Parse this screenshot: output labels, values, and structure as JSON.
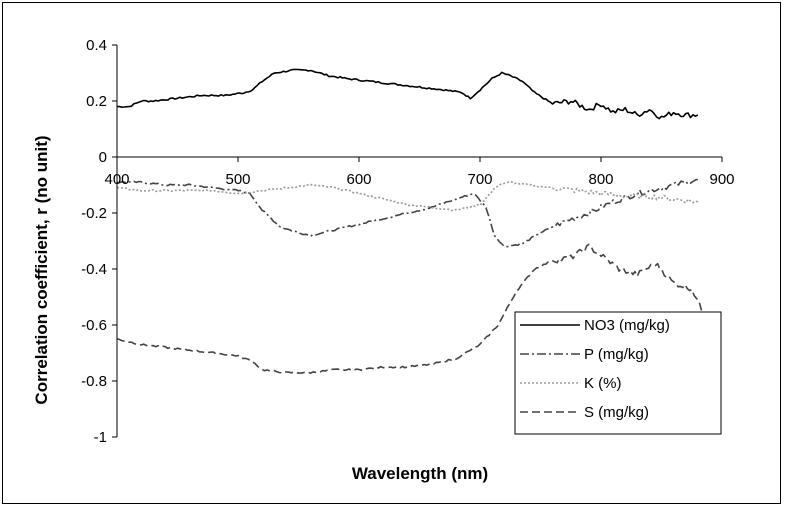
{
  "chart_data": {
    "type": "line",
    "title": "",
    "xlabel": "Wavelength (nm)",
    "ylabel": "Correlation coefficient, r (no unit)",
    "xlim": [
      400,
      900
    ],
    "ylim": [
      -1,
      0.4
    ],
    "xticks": [
      "400",
      "500",
      "600",
      "700",
      "800",
      "900"
    ],
    "yticks": [
      "0.4",
      "0.2",
      "0",
      "-0.2",
      "-0.4",
      "-0.6",
      "-0.8",
      "-1"
    ],
    "grid": false,
    "legend": "right-bottom",
    "series": [
      {
        "name": "NO3 (mg/kg)",
        "color": "#000000",
        "dash": "solid",
        "x": [
          400,
          410,
          420,
          430,
          450,
          470,
          490,
          505,
          512,
          520,
          530,
          545,
          560,
          575,
          590,
          610,
          630,
          650,
          670,
          685,
          692,
          700,
          710,
          718,
          725,
          735,
          745,
          760,
          775,
          790,
          800,
          810,
          820,
          830,
          840,
          850,
          860,
          870,
          880
        ],
        "y": [
          0.18,
          0.18,
          0.2,
          0.2,
          0.21,
          0.22,
          0.22,
          0.23,
          0.24,
          0.27,
          0.3,
          0.31,
          0.31,
          0.29,
          0.28,
          0.27,
          0.26,
          0.25,
          0.24,
          0.23,
          0.21,
          0.24,
          0.28,
          0.3,
          0.29,
          0.27,
          0.23,
          0.19,
          0.2,
          0.17,
          0.19,
          0.16,
          0.17,
          0.15,
          0.17,
          0.14,
          0.16,
          0.15,
          0.15
        ]
      },
      {
        "name": "P (mg/kg)",
        "color": "#444444",
        "dash": "dashdot",
        "x": [
          400,
          420,
          440,
          460,
          480,
          500,
          510,
          520,
          535,
          550,
          560,
          580,
          600,
          620,
          640,
          660,
          680,
          695,
          705,
          712,
          720,
          735,
          750,
          770,
          790,
          810,
          830,
          850,
          870,
          880
        ],
        "y": [
          -0.09,
          -0.09,
          -0.1,
          -0.1,
          -0.11,
          -0.12,
          -0.13,
          -0.19,
          -0.25,
          -0.27,
          -0.28,
          -0.26,
          -0.24,
          -0.22,
          -0.2,
          -0.18,
          -0.15,
          -0.13,
          -0.18,
          -0.28,
          -0.32,
          -0.31,
          -0.27,
          -0.23,
          -0.2,
          -0.16,
          -0.13,
          -0.11,
          -0.09,
          -0.08
        ]
      },
      {
        "name": "K (%)",
        "color": "#9a9a9a",
        "dash": "dotted",
        "x": [
          400,
          420,
          440,
          460,
          480,
          500,
          520,
          540,
          560,
          580,
          600,
          620,
          640,
          660,
          680,
          700,
          715,
          725,
          740,
          760,
          780,
          800,
          820,
          840,
          860,
          880
        ],
        "y": [
          -0.11,
          -0.12,
          -0.12,
          -0.12,
          -0.12,
          -0.13,
          -0.12,
          -0.11,
          -0.1,
          -0.11,
          -0.13,
          -0.15,
          -0.17,
          -0.18,
          -0.19,
          -0.17,
          -0.1,
          -0.09,
          -0.1,
          -0.11,
          -0.12,
          -0.13,
          -0.14,
          -0.14,
          -0.15,
          -0.16
        ]
      },
      {
        "name": "S (mg/kg)",
        "color": "#444444",
        "dash": "dashed",
        "x": [
          400,
          420,
          440,
          460,
          480,
          500,
          512,
          520,
          540,
          560,
          580,
          600,
          620,
          640,
          660,
          680,
          700,
          715,
          730,
          745,
          760,
          775,
          790,
          800,
          815,
          830,
          845,
          860,
          875,
          885
        ],
        "y": [
          -0.65,
          -0.67,
          -0.68,
          -0.69,
          -0.7,
          -0.71,
          -0.73,
          -0.76,
          -0.77,
          -0.77,
          -0.76,
          -0.76,
          -0.75,
          -0.75,
          -0.74,
          -0.72,
          -0.67,
          -0.6,
          -0.48,
          -0.4,
          -0.37,
          -0.36,
          -0.32,
          -0.35,
          -0.4,
          -0.42,
          -0.38,
          -0.45,
          -0.47,
          -0.56
        ]
      }
    ]
  }
}
